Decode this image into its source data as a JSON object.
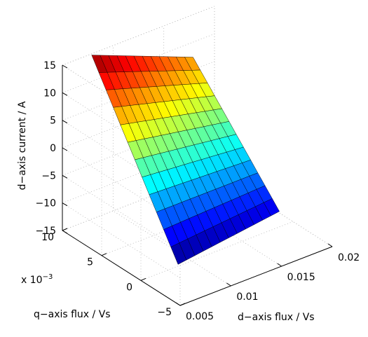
{
  "chart_data": {
    "type": "surface3d",
    "title": "",
    "xlabel": "d−axis flux / Vs",
    "ylabel": "q−axis flux / Vs",
    "zlabel": "d−axis current / A",
    "y_exponent_label": "x 10",
    "y_exponent_power": "−3",
    "x_ticks": [
      "0.005",
      "0.01",
      "0.015",
      "0.02"
    ],
    "y_ticks": [
      "−5",
      "0",
      "5",
      "10"
    ],
    "z_ticks": [
      "−15",
      "−10",
      "−5",
      "0",
      "5",
      "10",
      "15"
    ],
    "x_tick_values": [
      0.005,
      0.01,
      0.015,
      0.02
    ],
    "y_tick_values": [
      -5,
      0,
      5,
      10
    ],
    "z_tick_values": [
      -15,
      -10,
      -5,
      0,
      5,
      10,
      15
    ],
    "xlim": [
      0.005,
      0.02
    ],
    "ylim": [
      -5,
      10
    ],
    "zlim": [
      -15,
      15
    ],
    "grid": true,
    "colormap": "jet",
    "surface": {
      "x_range": [
        0.0075,
        0.0175
      ],
      "y_range": [
        -1.5,
        9.5
      ],
      "x_steps": 12,
      "y_steps": 12,
      "corners": {
        "xmin_ymin": -12.5,
        "xmax_ymin": -10.0,
        "xmin_ymax": 15.5,
        "xmax_ymax": 8.0
      }
    }
  }
}
